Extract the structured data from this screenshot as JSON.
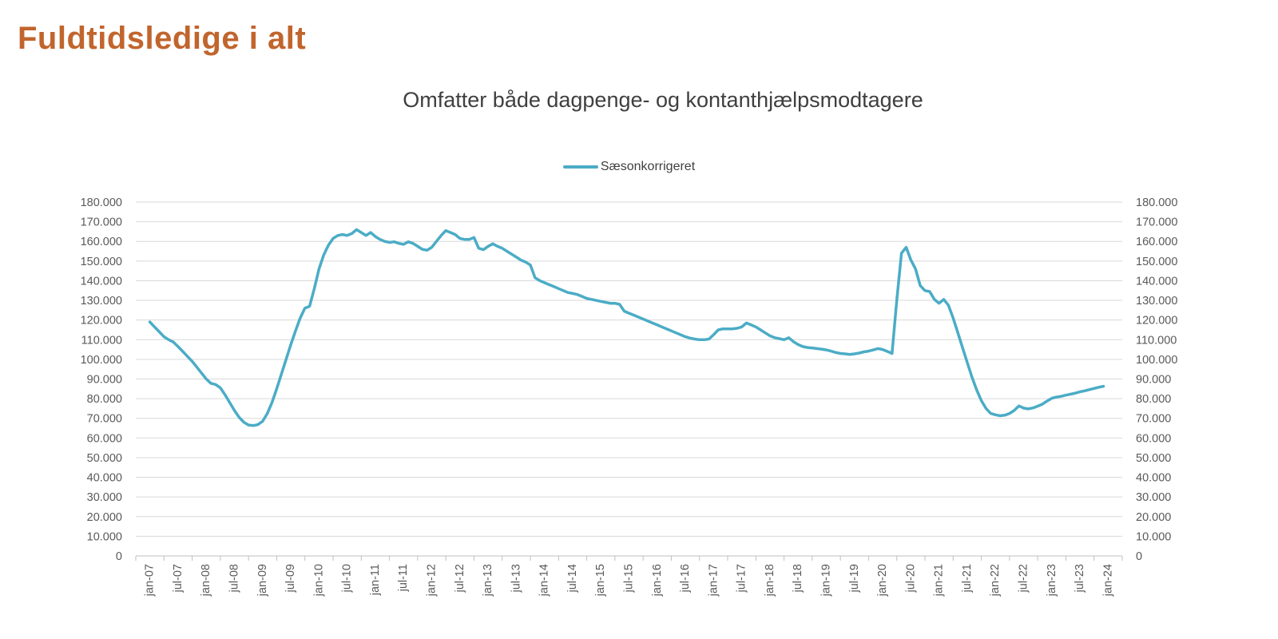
{
  "page": {
    "title": "Fuldtidsledige i alt",
    "title_color": "#C1652D",
    "background_color": "#FFFFFF"
  },
  "chart": {
    "subtitle": "Omfatter både dagpenge- og kontanthjælpsmodtagere",
    "legend": [
      {
        "label": "Sæsonkorrigeret",
        "color": "#4BACC6"
      }
    ]
  },
  "chart_data": {
    "type": "line",
    "title": "Omfatter både dagpenge- og kontanthjælpsmodtagere",
    "legend_position": "top-center",
    "grid": "horizontal",
    "ylim": [
      0,
      180000
    ],
    "y_step": 10000,
    "y_tick_labels_desc": [
      "180.000",
      "170.000",
      "160.000",
      "150.000",
      "140.000",
      "130.000",
      "120.000",
      "110.000",
      "100.000",
      "90.000",
      "80.000",
      "70.000",
      "60.000",
      "50.000",
      "40.000",
      "30.000",
      "20.000",
      "10.000",
      "0"
    ],
    "x_tick_labels": [
      "jan-07",
      "jul-07",
      "jan-08",
      "jul-08",
      "jan-09",
      "jul-09",
      "jan-10",
      "jul-10",
      "jan-11",
      "jul-11",
      "jan-12",
      "jul-12",
      "jan-13",
      "jul-13",
      "jan-14",
      "jul-14",
      "jan-15",
      "jul-15",
      "jan-16",
      "jul-16",
      "jan-17",
      "jul-17",
      "jan-18",
      "jul-18",
      "jan-19",
      "jul-19",
      "jan-20",
      "jul-20",
      "jan-21",
      "jul-21",
      "jan-22",
      "jul-22",
      "jan-23",
      "jul-23",
      "jan-24"
    ],
    "colors": {
      "line": "#4BACC6",
      "gridline": "#D9D9D9",
      "axis_line": "#BFBFBF",
      "tick_label": "#595959"
    },
    "series": [
      {
        "name": "Sæsonkorrigeret",
        "color": "#4BACC6",
        "frequency": "monthly",
        "start_month": "jan-07",
        "end_month": "dec-23",
        "values": [
          119000,
          116500,
          114000,
          111500,
          110000,
          108800,
          106500,
          104000,
          101500,
          99000,
          96000,
          93000,
          90000,
          87800,
          87200,
          85500,
          82000,
          78000,
          74000,
          70500,
          68000,
          66600,
          66300,
          66800,
          68500,
          72500,
          78000,
          85000,
          92500,
          100000,
          107500,
          114500,
          121000,
          126000,
          127000,
          136000,
          146000,
          153000,
          158000,
          161500,
          163000,
          163500,
          163000,
          164000,
          166000,
          164500,
          163000,
          164500,
          162500,
          161000,
          160000,
          159500,
          159800,
          159000,
          158500,
          159800,
          159000,
          157500,
          156000,
          155500,
          157000,
          160000,
          163000,
          165500,
          164500,
          163500,
          161500,
          161000,
          161000,
          162000,
          156500,
          155800,
          157500,
          158800,
          157500,
          156500,
          155000,
          153500,
          152000,
          150500,
          149500,
          148000,
          141500,
          140000,
          139000,
          138000,
          137000,
          136000,
          135000,
          134000,
          133500,
          133000,
          132000,
          131000,
          130500,
          130000,
          129500,
          129000,
          128500,
          128500,
          128000,
          124500,
          123500,
          122500,
          121500,
          120500,
          119500,
          118500,
          117500,
          116500,
          115500,
          114500,
          113500,
          112500,
          111500,
          110800,
          110300,
          110000,
          110000,
          110300,
          112500,
          115000,
          115500,
          115500,
          115500,
          115800,
          116500,
          118500,
          117500,
          116500,
          115000,
          113500,
          112000,
          111000,
          110500,
          110000,
          111000,
          109000,
          107500,
          106500,
          106000,
          105800,
          105500,
          105200,
          104800,
          104200,
          103500,
          103000,
          102800,
          102500,
          102800,
          103200,
          103800,
          104200,
          104800,
          105500,
          105000,
          104000,
          103000,
          130000,
          154000,
          157000,
          150500,
          146000,
          137500,
          135000,
          134500,
          130500,
          128500,
          130500,
          127500,
          121000,
          113500,
          106000,
          98500,
          91000,
          84500,
          79000,
          75000,
          72500,
          71800,
          71300,
          71600,
          72500,
          74000,
          76300,
          75200,
          74800,
          75300,
          76200,
          77200,
          78800,
          80200,
          80800,
          81200,
          81800,
          82300,
          82800,
          83500,
          84000,
          84600,
          85200,
          85800,
          86300
        ]
      }
    ]
  }
}
